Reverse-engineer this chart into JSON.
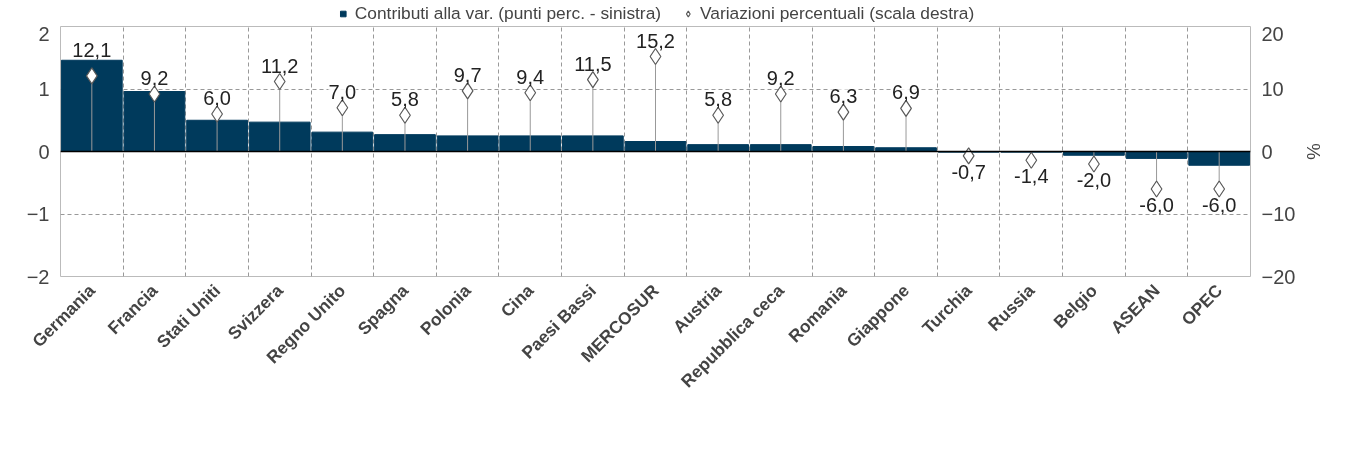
{
  "chart_data": {
    "type": "bar",
    "categories": [
      "Germania",
      "Francia",
      "Stati Uniti",
      "Svizzera",
      "Regno Unito",
      "Spagna",
      "Polonia",
      "Cina",
      "Paesi Bassi",
      "MERCOSUR",
      "Austria",
      "Repubblica ceca",
      "Romania",
      "Giappone",
      "Turchia",
      "Russia",
      "Belgio",
      "ASEAN",
      "OPEC"
    ],
    "series": [
      {
        "name": "Contributi alla var. (punti perc. - sinistra)",
        "color": "#003a5c",
        "values": [
          1.46,
          0.96,
          0.5,
          0.47,
          0.31,
          0.27,
          0.25,
          0.25,
          0.25,
          0.16,
          0.11,
          0.11,
          0.08,
          0.06,
          -0.01,
          -0.01,
          -0.06,
          -0.11,
          -0.22
        ]
      },
      {
        "name": "Variazioni percentuali (scala destra)",
        "type": "lollipop",
        "axis": "y2",
        "marker": "diamond",
        "color": "#595959",
        "values": [
          12.1,
          9.2,
          6.0,
          11.2,
          7.0,
          5.8,
          9.7,
          9.4,
          11.5,
          15.2,
          5.8,
          9.2,
          6.3,
          6.9,
          -0.7,
          -1.4,
          -2.0,
          -6.0,
          -6.0
        ],
        "value_labels": [
          "12,1",
          "9,2",
          "6,0",
          "11,2",
          "7,0",
          "5,8",
          "9,7",
          "9,4",
          "11,5",
          "15,2",
          "5,8",
          "9,2",
          "6,3",
          "6,9",
          "-0,7",
          "-1,4",
          "-2,0",
          "-6,0",
          "-6,0"
        ]
      }
    ],
    "ylim": [
      -2,
      2
    ],
    "yticks": [
      -2,
      -1,
      0,
      1,
      2
    ],
    "y2lim": [
      -20,
      20
    ],
    "y2ticks": [
      -20,
      -10,
      0,
      10,
      20
    ],
    "y2label": "%",
    "grid": true,
    "legend": "top"
  }
}
